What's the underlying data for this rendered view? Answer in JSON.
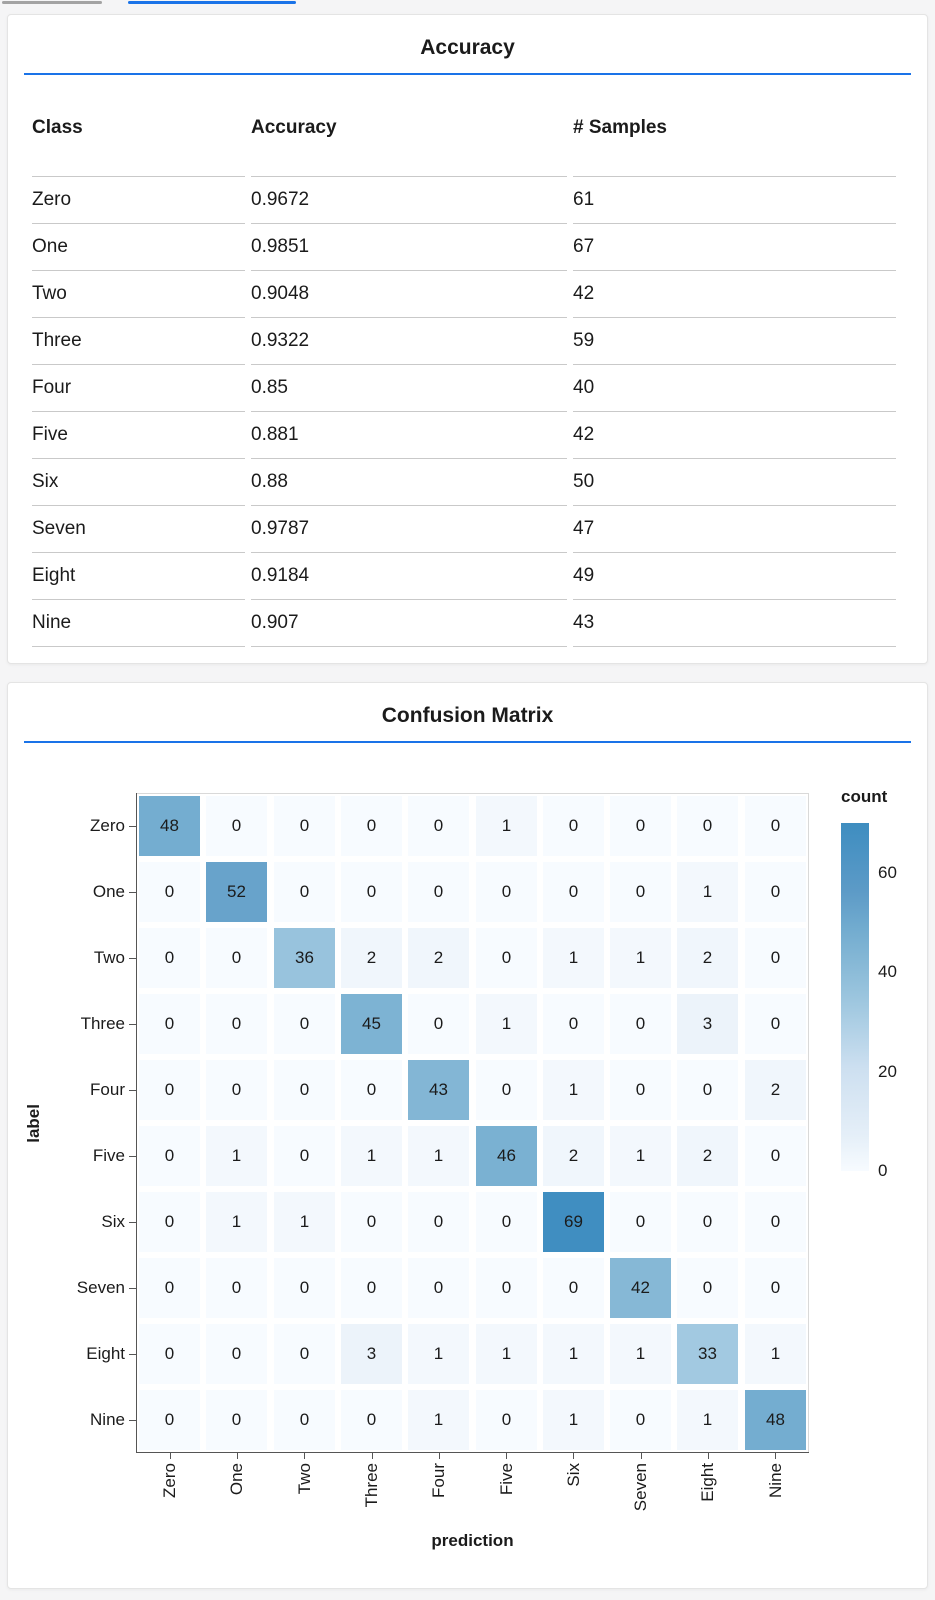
{
  "page": {
    "background": "#f5f5f6",
    "accent_blue": "#1a73e8"
  },
  "top_bars": {
    "scrollbar_thumb_color": "#a3a3a3",
    "tab_indicator_color": "#1a73e8"
  },
  "chart_data": [
    {
      "type": "table",
      "title": "Accuracy",
      "columns": [
        "Class",
        "Accuracy",
        "# Samples"
      ],
      "rows": [
        [
          "Zero",
          "0.9672",
          "61"
        ],
        [
          "One",
          "0.9851",
          "67"
        ],
        [
          "Two",
          "0.9048",
          "42"
        ],
        [
          "Three",
          "0.9322",
          "59"
        ],
        [
          "Four",
          "0.85",
          "40"
        ],
        [
          "Five",
          "0.881",
          "42"
        ],
        [
          "Six",
          "0.88",
          "50"
        ],
        [
          "Seven",
          "0.9787",
          "47"
        ],
        [
          "Eight",
          "0.9184",
          "49"
        ],
        [
          "Nine",
          "0.907",
          "43"
        ]
      ]
    },
    {
      "type": "heatmap",
      "title": "Confusion Matrix",
      "xlabel": "prediction",
      "ylabel": "label",
      "x_categories": [
        "Zero",
        "One",
        "Two",
        "Three",
        "Four",
        "Five",
        "Six",
        "Seven",
        "Eight",
        "Nine"
      ],
      "y_categories": [
        "Zero",
        "One",
        "Two",
        "Three",
        "Four",
        "Five",
        "Six",
        "Seven",
        "Eight",
        "Nine"
      ],
      "matrix": [
        [
          48,
          0,
          0,
          0,
          0,
          1,
          0,
          0,
          0,
          0
        ],
        [
          0,
          52,
          0,
          0,
          0,
          0,
          0,
          0,
          1,
          0
        ],
        [
          0,
          0,
          36,
          2,
          2,
          0,
          1,
          1,
          2,
          0
        ],
        [
          0,
          0,
          0,
          45,
          0,
          1,
          0,
          0,
          3,
          0
        ],
        [
          0,
          0,
          0,
          0,
          43,
          0,
          1,
          0,
          0,
          2
        ],
        [
          0,
          1,
          0,
          1,
          1,
          46,
          2,
          1,
          2,
          0
        ],
        [
          0,
          1,
          1,
          0,
          0,
          0,
          69,
          0,
          0,
          0
        ],
        [
          0,
          0,
          0,
          0,
          0,
          0,
          0,
          42,
          0,
          0
        ],
        [
          0,
          0,
          0,
          3,
          1,
          1,
          1,
          1,
          33,
          1
        ],
        [
          0,
          0,
          0,
          0,
          1,
          0,
          1,
          0,
          1,
          48
        ]
      ],
      "legend": {
        "title": "count",
        "ticks": [
          60,
          40,
          20,
          0
        ],
        "domain": [
          0,
          70
        ]
      },
      "color_ramp": [
        {
          "v": 0,
          "c": "#f7fbff"
        },
        {
          "v": 3,
          "c": "#ecf3fa"
        },
        {
          "v": 20,
          "c": "#cfe1f1"
        },
        {
          "v": 35,
          "c": "#9bc5de"
        },
        {
          "v": 48,
          "c": "#74add0"
        },
        {
          "v": 55,
          "c": "#5f9cc8"
        },
        {
          "v": 70,
          "c": "#3e8dc0"
        }
      ]
    }
  ]
}
